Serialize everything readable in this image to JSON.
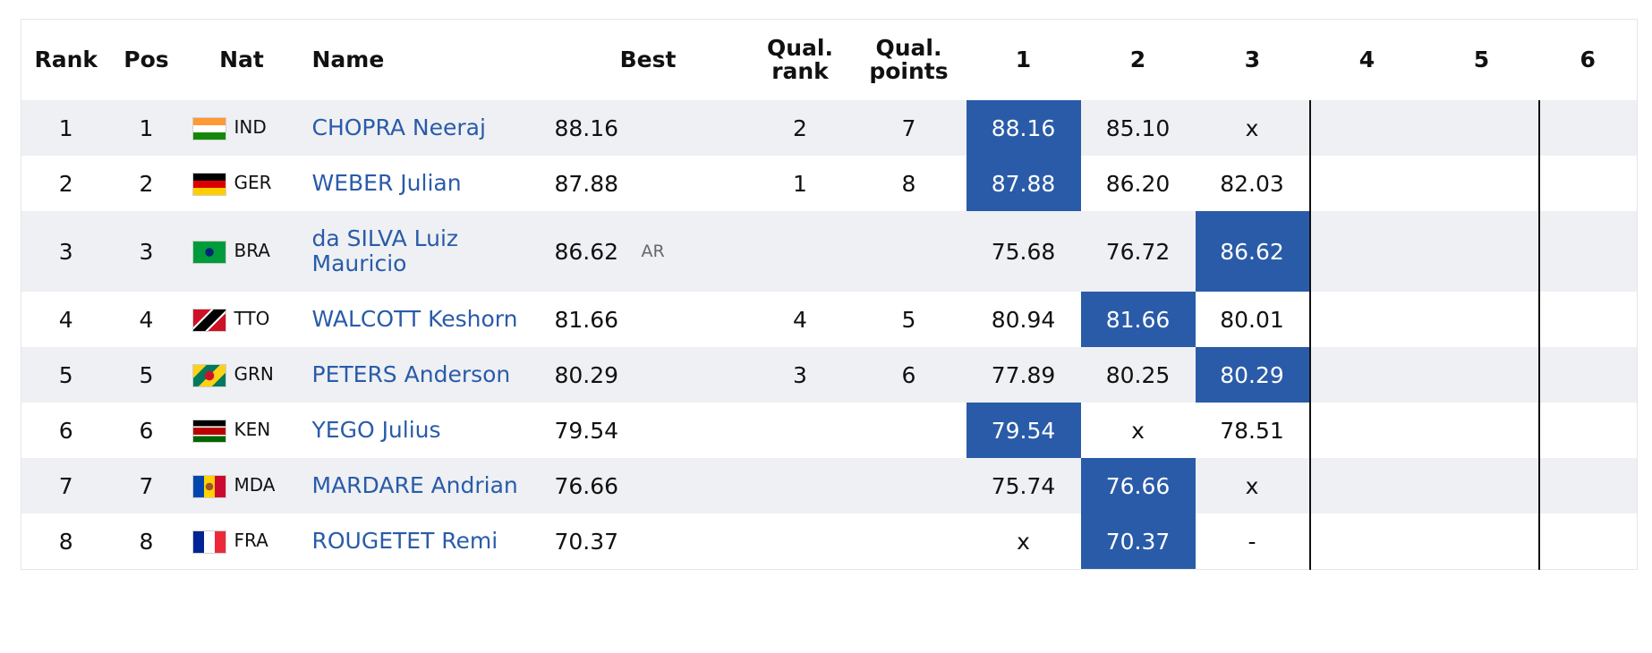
{
  "headers": {
    "rank": "Rank",
    "pos": "Pos",
    "nat": "Nat",
    "name": "Name",
    "best": "Best",
    "qual_rank_1": "Qual.",
    "qual_rank_2": "rank",
    "qual_points_1": "Qual.",
    "qual_points_2": "points",
    "a1": "1",
    "a2": "2",
    "a3": "3",
    "a4": "4",
    "a5": "5",
    "a6": "6"
  },
  "colors": {
    "highlight": "#2a5ba8",
    "name_link": "#2a5ba8",
    "row_alt": "#eef0f4"
  },
  "rows": [
    {
      "rank": "1",
      "pos": "1",
      "nat": "IND",
      "flag": "india-flag-icon",
      "name": "CHOPRA Neeraj",
      "best": "88.16",
      "record": "",
      "qual_rank": "2",
      "qual_points": "7",
      "attempts": [
        "88.16",
        "85.10",
        "x"
      ],
      "best_attempt": 1
    },
    {
      "rank": "2",
      "pos": "2",
      "nat": "GER",
      "flag": "germany-flag-icon",
      "name": "WEBER Julian",
      "best": "87.88",
      "record": "",
      "qual_rank": "1",
      "qual_points": "8",
      "attempts": [
        "87.88",
        "86.20",
        "82.03"
      ],
      "best_attempt": 1
    },
    {
      "rank": "3",
      "pos": "3",
      "nat": "BRA",
      "flag": "brazil-flag-icon",
      "name": "da SILVA Luiz Mauricio",
      "best": "86.62",
      "record": "AR",
      "qual_rank": "",
      "qual_points": "",
      "attempts": [
        "75.68",
        "76.72",
        "86.62"
      ],
      "best_attempt": 3
    },
    {
      "rank": "4",
      "pos": "4",
      "nat": "TTO",
      "flag": "trinidad-flag-icon",
      "name": "WALCOTT Keshorn",
      "best": "81.66",
      "record": "",
      "qual_rank": "4",
      "qual_points": "5",
      "attempts": [
        "80.94",
        "81.66",
        "80.01"
      ],
      "best_attempt": 2
    },
    {
      "rank": "5",
      "pos": "5",
      "nat": "GRN",
      "flag": "grenada-flag-icon",
      "name": "PETERS Anderson",
      "best": "80.29",
      "record": "",
      "qual_rank": "3",
      "qual_points": "6",
      "attempts": [
        "77.89",
        "80.25",
        "80.29"
      ],
      "best_attempt": 3
    },
    {
      "rank": "6",
      "pos": "6",
      "nat": "KEN",
      "flag": "kenya-flag-icon",
      "name": "YEGO Julius",
      "best": "79.54",
      "record": "",
      "qual_rank": "",
      "qual_points": "",
      "attempts": [
        "79.54",
        "x",
        "78.51"
      ],
      "best_attempt": 1
    },
    {
      "rank": "7",
      "pos": "7",
      "nat": "MDA",
      "flag": "moldova-flag-icon",
      "name": "MARDARE Andrian",
      "best": "76.66",
      "record": "",
      "qual_rank": "",
      "qual_points": "",
      "attempts": [
        "75.74",
        "76.66",
        "x"
      ],
      "best_attempt": 2
    },
    {
      "rank": "8",
      "pos": "8",
      "nat": "FRA",
      "flag": "france-flag-icon",
      "name": "ROUGETET Remi",
      "best": "70.37",
      "record": "",
      "qual_rank": "",
      "qual_points": "",
      "attempts": [
        "x",
        "70.37",
        "-"
      ],
      "best_attempt": 2
    }
  ]
}
